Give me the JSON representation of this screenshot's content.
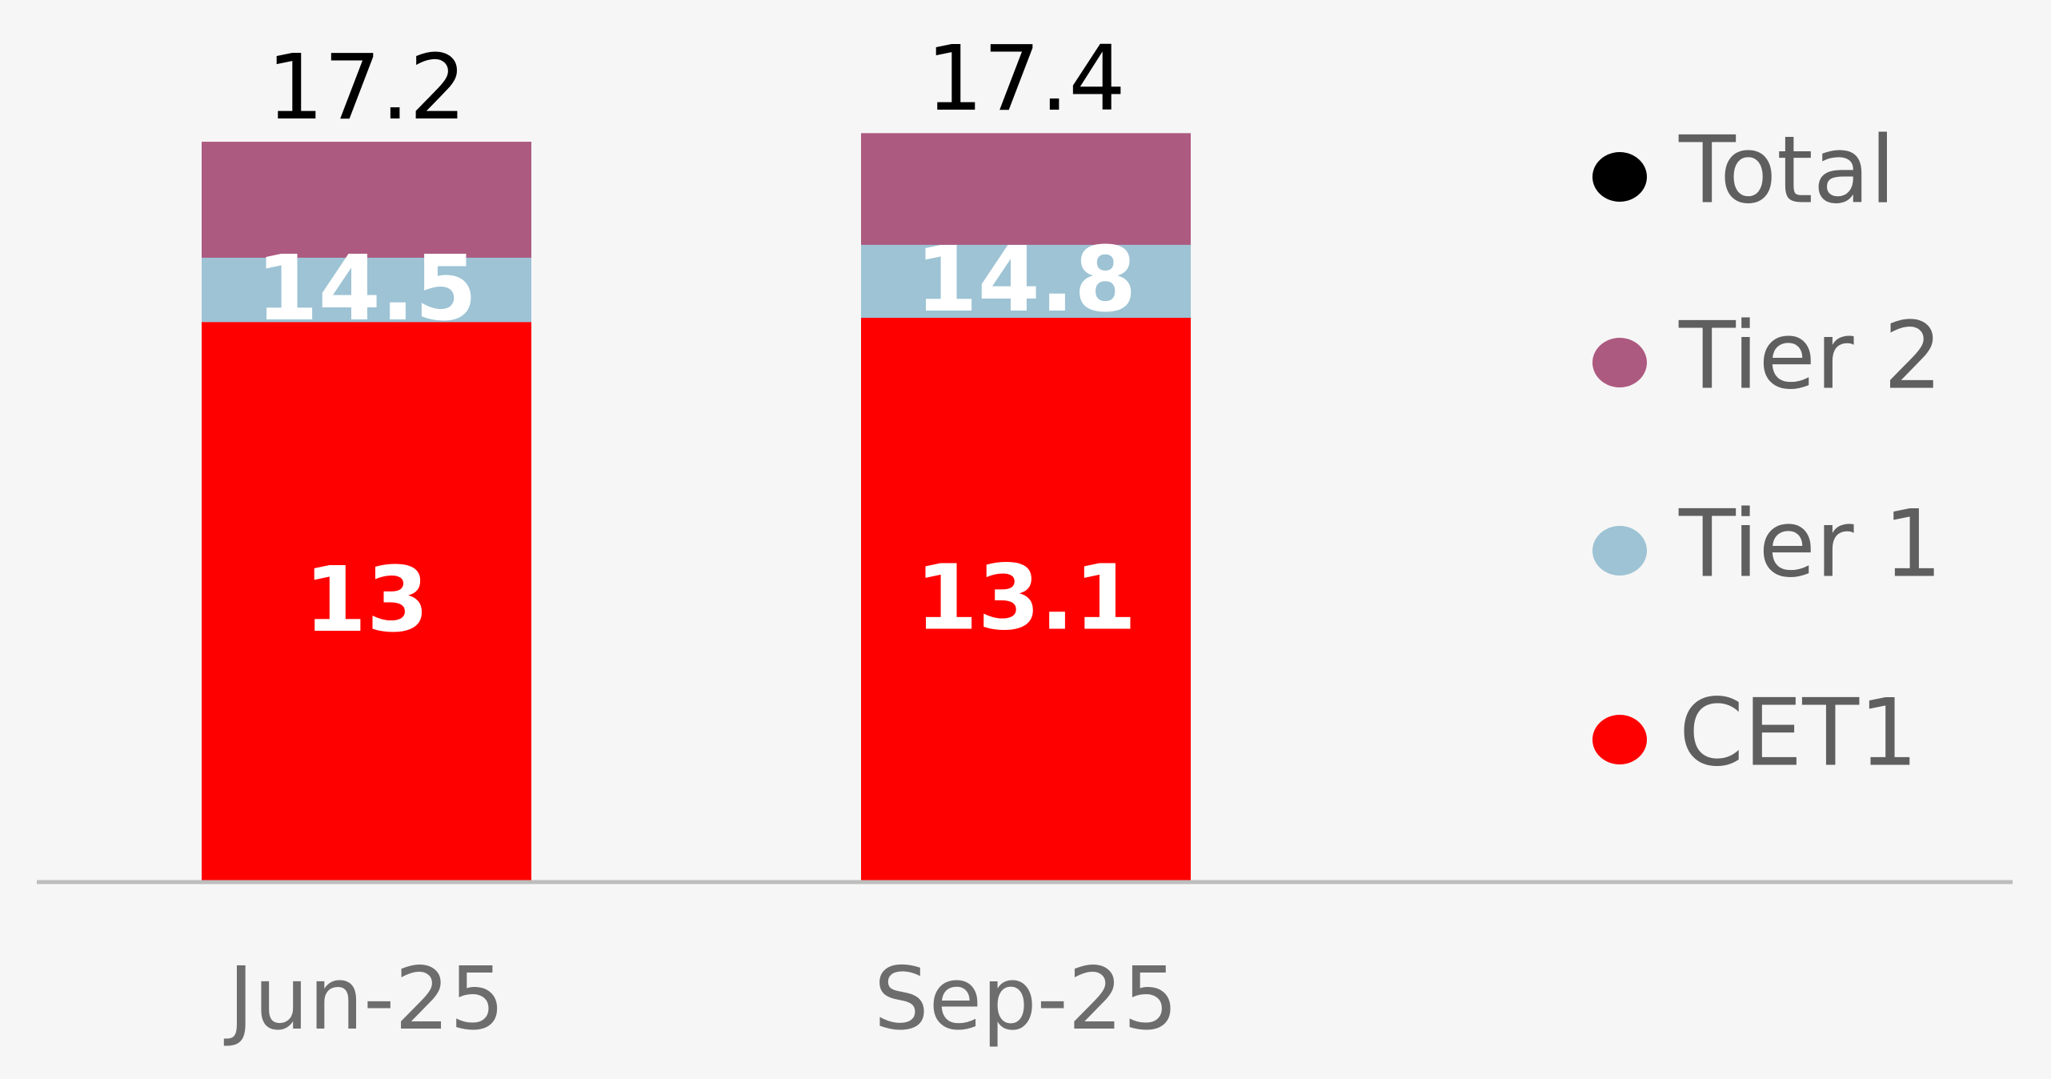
{
  "chart_data": {
    "type": "bar",
    "categories": [
      "Jun-25",
      "Sep-25"
    ],
    "series": [
      {
        "name": "Total",
        "color": "#000000",
        "values": [
          17.2,
          17.4
        ],
        "bars": false,
        "labels": "above"
      },
      {
        "name": "Tier 2",
        "color": "#ad5a80",
        "values": [
          17.2,
          17.4
        ],
        "bars": true,
        "labels": false
      },
      {
        "name": "Tier 1",
        "color": "#9dc3d4",
        "values": [
          14.5,
          14.8
        ],
        "bars": true,
        "labels": "inside"
      },
      {
        "name": "CET1",
        "color": "#ff0000",
        "values": [
          13.0,
          13.1
        ],
        "bars": true,
        "labels": "inside"
      }
    ],
    "ylim": [
      0,
      20.5
    ],
    "legend": "right"
  }
}
